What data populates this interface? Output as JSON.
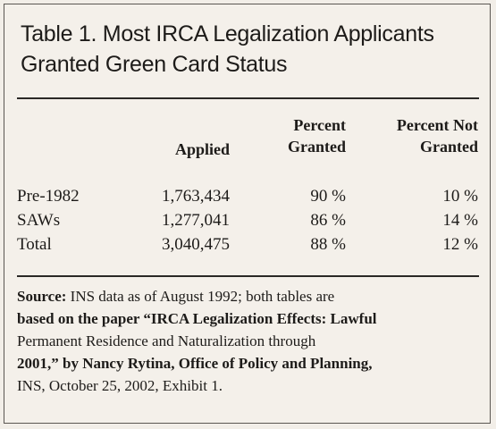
{
  "title_line1": "Table 1. Most IRCA Legalization Applicants",
  "title_line2": "Granted Green Card Status",
  "headers": {
    "applied": "Applied",
    "granted_l1": "Percent",
    "granted_l2": "Granted",
    "notgranted_l1": "Percent Not",
    "notgranted_l2": "Granted"
  },
  "rows": [
    {
      "label": "Pre-1982",
      "applied": "1,763,434",
      "granted": "90 %",
      "not_granted": "10 %"
    },
    {
      "label": "SAWs",
      "applied": "1,277,041",
      "granted": "86 %",
      "not_granted": "14 %"
    },
    {
      "label": "Total",
      "applied": "3,040,475",
      "granted": "88 %",
      "not_granted": "12 %"
    }
  ],
  "source": {
    "label": "Source:",
    "l1": " INS data as of August 1992; both tables are",
    "l2": "based on the paper “IRCA Legalization Effects: Lawful",
    "l3": "Permanent Residence and Naturalization through",
    "l4_bold": "2001,” by Nancy Rytina, Office of Policy and Planning,",
    "l5": "INS, October 25, 2002, Exhibit 1."
  }
}
